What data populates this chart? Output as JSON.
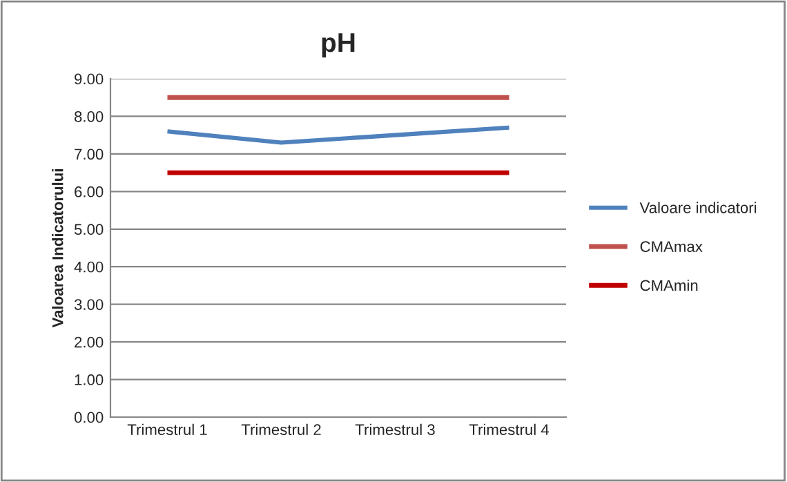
{
  "chart_data": {
    "type": "line",
    "title": "pH",
    "ylabel": "Valoarea Indicatorului",
    "categories": [
      "Trimestrul 1",
      "Trimestrul 2",
      "Trimestrul 3",
      "Trimestrul 4"
    ],
    "series": [
      {
        "name": "Valoare indicatori",
        "color": "#4f81bd",
        "values": [
          7.6,
          7.3,
          7.5,
          7.7
        ]
      },
      {
        "name": "CMAmax",
        "color": "#c0504d",
        "values": [
          8.5,
          8.5,
          8.5,
          8.5
        ]
      },
      {
        "name": "CMAmin",
        "color": "#c00000",
        "values": [
          6.5,
          6.5,
          6.5,
          6.5
        ]
      }
    ],
    "ylim": [
      0,
      9
    ],
    "yticks": [
      {
        "value": 0,
        "label": "0.00"
      },
      {
        "value": 1,
        "label": "1.00"
      },
      {
        "value": 2,
        "label": "2.00"
      },
      {
        "value": 3,
        "label": "3.00"
      },
      {
        "value": 4,
        "label": "4.00"
      },
      {
        "value": 5,
        "label": "5.00"
      },
      {
        "value": 6,
        "label": "6.00"
      },
      {
        "value": 7,
        "label": "7.00"
      },
      {
        "value": 8,
        "label": "8.00"
      },
      {
        "value": 9,
        "label": "9.00"
      }
    ],
    "grid": "y",
    "legend": "right",
    "marker": "none",
    "line_style": "solid"
  }
}
